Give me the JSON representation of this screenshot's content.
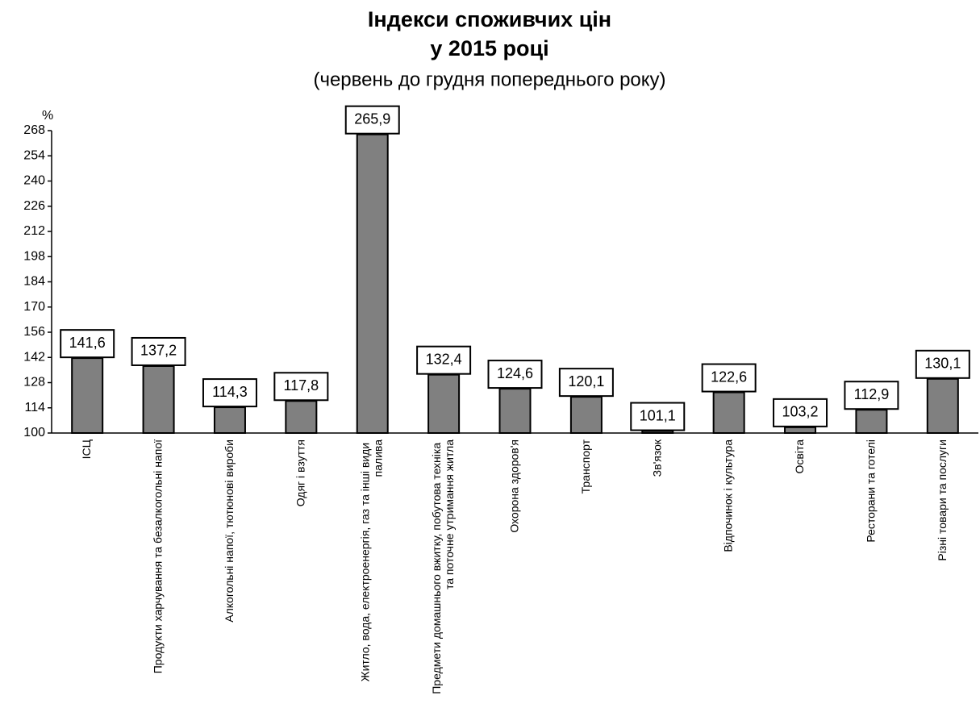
{
  "chart_data": {
    "type": "bar",
    "title": "Індекси споживчих цін",
    "title_line2": "у 2015 році",
    "subtitle": "(червень до грудня попереднього року)",
    "y_label": "%",
    "categories": [
      "ІСЦ",
      "Продукти харчування та безалкогольні напої",
      "Алкогольні напої, тютюнові вироби",
      "Одяг і взуття",
      "Житло, вода, електроенергія, газ та інші види палива",
      "Предмети домашнього вжитку, побутова техніка та поточне утримання житла",
      "Охорона здоров'я",
      "Транспорт",
      "Зв'язок",
      "Відпочинок і культура",
      "Освіта",
      "Ресторани та готелі",
      "Різні товари та послуги"
    ],
    "values": [
      141.6,
      137.2,
      114.3,
      117.8,
      265.9,
      132.4,
      124.6,
      120.1,
      101.1,
      122.6,
      103.2,
      112.9,
      130.1
    ],
    "value_labels": [
      "141,6",
      "137,2",
      "114,3",
      "117,8",
      "265,9",
      "132,4",
      "124,6",
      "120,1",
      "101,1",
      "122,6",
      "103,2",
      "112,9",
      "130,1"
    ],
    "color": "#808080",
    "ylim": [
      100,
      268
    ],
    "yticks": [
      100,
      114,
      128,
      142,
      156,
      170,
      184,
      198,
      212,
      226,
      240,
      254,
      268
    ],
    "grid": false
  }
}
